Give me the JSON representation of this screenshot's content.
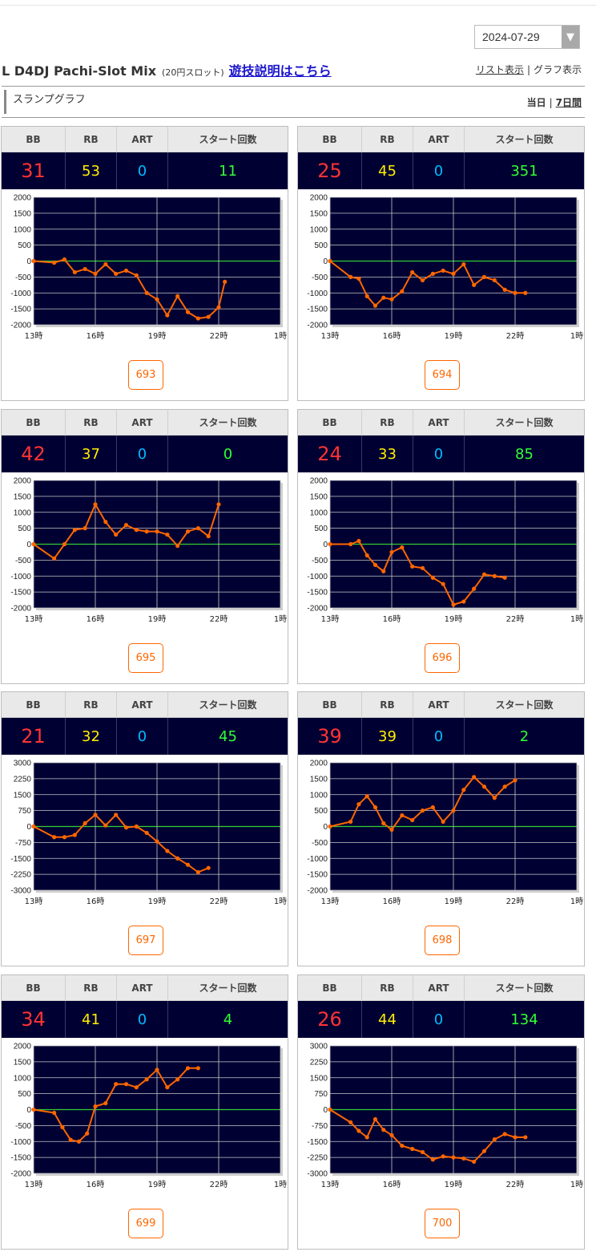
{
  "date_select": {
    "value": "2024-07-29",
    "arrow": "▼"
  },
  "header": {
    "machine_name": "L D4DJ Pachi-Slot Mix",
    "rate": "(20円スロット)",
    "howto_link": "遊技説明はこちら",
    "view_list": "リスト表示",
    "view_graph": "グラフ表示",
    "sep": "|"
  },
  "section": {
    "title": "スランプグラフ",
    "today": "当日",
    "week": "7日間",
    "sep": "|"
  },
  "table_headers": {
    "bb": "BB",
    "rb": "RB",
    "art": "ART",
    "start": "スタート回数"
  },
  "colors": {
    "panel_bg": "#000033",
    "grid": "#c8c8c8",
    "zero_line": "#33cc33",
    "series": "#ff6600",
    "bb": "#ff3333",
    "rb": "#ffee00",
    "art": "#00bbff",
    "start": "#33ff33"
  },
  "icons": {
    "dropdown": "chevron-down-icon"
  },
  "machines": [
    {
      "number": "693",
      "bb": "31",
      "rb": "53",
      "art": "0",
      "start": "11",
      "chart_data": {
        "type": "line",
        "x_ticks": [
          "13時",
          "16時",
          "19時",
          "22時",
          "1時"
        ],
        "y_ticks": [
          "2000",
          "1500",
          "1000",
          "500",
          "0",
          "-500",
          "-1000",
          "-1500",
          "-2000"
        ],
        "ylim": [
          -2000,
          2000
        ],
        "xlim": [
          13,
          25
        ],
        "grid": true,
        "x": [
          13,
          14,
          14.5,
          15,
          15.5,
          16,
          16.5,
          17,
          17.5,
          18,
          18.5,
          19,
          19.5,
          20,
          20.5,
          21,
          21.5,
          22,
          22.3
        ],
        "y": [
          0,
          -50,
          50,
          -350,
          -250,
          -400,
          -100,
          -400,
          -300,
          -450,
          -1000,
          -1200,
          -1700,
          -1100,
          -1600,
          -1800,
          -1750,
          -1450,
          -650
        ]
      }
    },
    {
      "number": "694",
      "bb": "25",
      "rb": "45",
      "art": "0",
      "start": "351",
      "chart_data": {
        "type": "line",
        "x_ticks": [
          "13時",
          "16時",
          "19時",
          "22時",
          "1時"
        ],
        "y_ticks": [
          "2000",
          "1500",
          "1000",
          "500",
          "0",
          "-500",
          "-1000",
          "-1500",
          "-2000"
        ],
        "ylim": [
          -2000,
          2000
        ],
        "xlim": [
          13,
          25
        ],
        "grid": true,
        "x": [
          13,
          14,
          14.4,
          14.8,
          15.2,
          15.6,
          16,
          16.5,
          17,
          17.5,
          18,
          18.5,
          19,
          19.5,
          20,
          20.5,
          21,
          21.5,
          22,
          22.5
        ],
        "y": [
          0,
          -500,
          -550,
          -1100,
          -1400,
          -1150,
          -1200,
          -950,
          -350,
          -600,
          -400,
          -300,
          -400,
          -100,
          -750,
          -500,
          -600,
          -900,
          -1000,
          -1000
        ]
      }
    },
    {
      "number": "695",
      "bb": "42",
      "rb": "37",
      "art": "0",
      "start": "0",
      "chart_data": {
        "type": "line",
        "x_ticks": [
          "13時",
          "16時",
          "19時",
          "22時",
          "1時"
        ],
        "y_ticks": [
          "2000",
          "1500",
          "1000",
          "500",
          "0",
          "-500",
          "-1000",
          "-1500",
          "-2000"
        ],
        "ylim": [
          -2000,
          2000
        ],
        "xlim": [
          13,
          25
        ],
        "grid": true,
        "x": [
          13,
          14,
          14.5,
          15,
          15.5,
          16,
          16.5,
          17,
          17.5,
          18,
          18.5,
          19,
          19.5,
          20,
          20.5,
          21,
          21.5,
          22
        ],
        "y": [
          0,
          -450,
          0,
          450,
          500,
          1250,
          700,
          300,
          600,
          450,
          400,
          400,
          300,
          -50,
          400,
          500,
          250,
          1250
        ]
      }
    },
    {
      "number": "696",
      "bb": "24",
      "rb": "33",
      "art": "0",
      "start": "85",
      "chart_data": {
        "type": "line",
        "x_ticks": [
          "13時",
          "16時",
          "19時",
          "22時",
          "1時"
        ],
        "y_ticks": [
          "2000",
          "1500",
          "1000",
          "500",
          "0",
          "-500",
          "-1000",
          "-1500",
          "-2000"
        ],
        "ylim": [
          -2000,
          2000
        ],
        "xlim": [
          13,
          25
        ],
        "grid": true,
        "x": [
          13,
          14,
          14.4,
          14.8,
          15.2,
          15.6,
          16,
          16.5,
          17,
          17.5,
          18,
          18.5,
          19,
          19.5,
          20,
          20.5,
          21,
          21.5
        ],
        "y": [
          0,
          0,
          100,
          -350,
          -650,
          -850,
          -250,
          -100,
          -700,
          -750,
          -1050,
          -1250,
          -1900,
          -1800,
          -1400,
          -950,
          -1000,
          -1050
        ]
      }
    },
    {
      "number": "697",
      "bb": "21",
      "rb": "32",
      "art": "0",
      "start": "45",
      "chart_data": {
        "type": "line",
        "x_ticks": [
          "13時",
          "16時",
          "19時",
          "22時",
          "1時"
        ],
        "y_ticks": [
          "3000",
          "2250",
          "1500",
          "750",
          "0",
          "-750",
          "-1500",
          "-2250",
          "-3000"
        ],
        "ylim": [
          -3000,
          3000
        ],
        "xlim": [
          13,
          25
        ],
        "grid": true,
        "x": [
          13,
          14,
          14.5,
          15,
          15.5,
          16,
          16.5,
          17,
          17.5,
          18,
          18.5,
          19,
          19.5,
          20,
          20.5,
          21,
          21.5
        ],
        "y": [
          0,
          -500,
          -500,
          -400,
          150,
          550,
          50,
          550,
          -50,
          0,
          -300,
          -700,
          -1150,
          -1500,
          -1800,
          -2150,
          -1950
        ]
      }
    },
    {
      "number": "698",
      "bb": "39",
      "rb": "39",
      "art": "0",
      "start": "2",
      "chart_data": {
        "type": "line",
        "x_ticks": [
          "13時",
          "16時",
          "19時",
          "22時",
          "1時"
        ],
        "y_ticks": [
          "2000",
          "1500",
          "1000",
          "500",
          "0",
          "-500",
          "-1000",
          "-1500",
          "-2000"
        ],
        "ylim": [
          -2000,
          2000
        ],
        "xlim": [
          13,
          25
        ],
        "grid": true,
        "x": [
          13,
          14,
          14.4,
          14.8,
          15.2,
          15.6,
          16,
          16.5,
          17,
          17.5,
          18,
          18.5,
          19,
          19.5,
          20,
          20.5,
          21,
          21.5,
          22
        ],
        "y": [
          0,
          150,
          700,
          950,
          600,
          100,
          -100,
          350,
          200,
          500,
          600,
          150,
          500,
          1150,
          1550,
          1250,
          900,
          1250,
          1450
        ]
      }
    },
    {
      "number": "699",
      "bb": "34",
      "rb": "41",
      "art": "0",
      "start": "4",
      "chart_data": {
        "type": "line",
        "x_ticks": [
          "13時",
          "16時",
          "19時",
          "22時",
          "1時"
        ],
        "y_ticks": [
          "2000",
          "1500",
          "1000",
          "500",
          "0",
          "-500",
          "-1000",
          "-1500",
          "-2000"
        ],
        "ylim": [
          -2000,
          2000
        ],
        "xlim": [
          13,
          25
        ],
        "grid": true,
        "x": [
          13,
          14,
          14.4,
          14.8,
          15.2,
          15.6,
          16,
          16.5,
          17,
          17.5,
          18,
          18.5,
          19,
          19.5,
          20,
          20.5,
          21
        ],
        "y": [
          0,
          -100,
          -550,
          -950,
          -1000,
          -750,
          100,
          200,
          800,
          800,
          700,
          950,
          1250,
          700,
          950,
          1300,
          1300
        ]
      }
    },
    {
      "number": "700",
      "bb": "26",
      "rb": "44",
      "art": "0",
      "start": "134",
      "chart_data": {
        "type": "line",
        "x_ticks": [
          "13時",
          "16時",
          "19時",
          "22時",
          "1時"
        ],
        "y_ticks": [
          "3000",
          "2250",
          "1500",
          "750",
          "0",
          "-750",
          "-1500",
          "-2250",
          "-3000"
        ],
        "ylim": [
          -3000,
          3000
        ],
        "xlim": [
          13,
          25
        ],
        "grid": true,
        "x": [
          13,
          14,
          14.4,
          14.8,
          15.2,
          15.6,
          16,
          16.5,
          17,
          17.5,
          18,
          18.5,
          19,
          19.5,
          20,
          20.5,
          21,
          21.5,
          22,
          22.5
        ],
        "y": [
          0,
          -600,
          -1000,
          -1300,
          -450,
          -950,
          -1200,
          -1700,
          -1850,
          -2000,
          -2350,
          -2200,
          -2250,
          -2300,
          -2450,
          -1950,
          -1400,
          -1150,
          -1300,
          -1300
        ]
      }
    }
  ]
}
